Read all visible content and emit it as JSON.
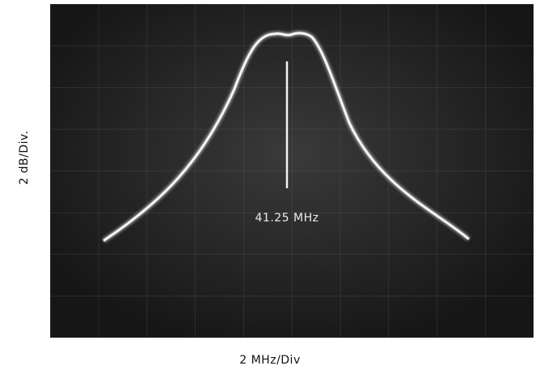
{
  "screen_label": "41.25 MHz",
  "y_axis_label": "2 dB/Div.",
  "x_axis_label": "2 MHz/Div"
}
